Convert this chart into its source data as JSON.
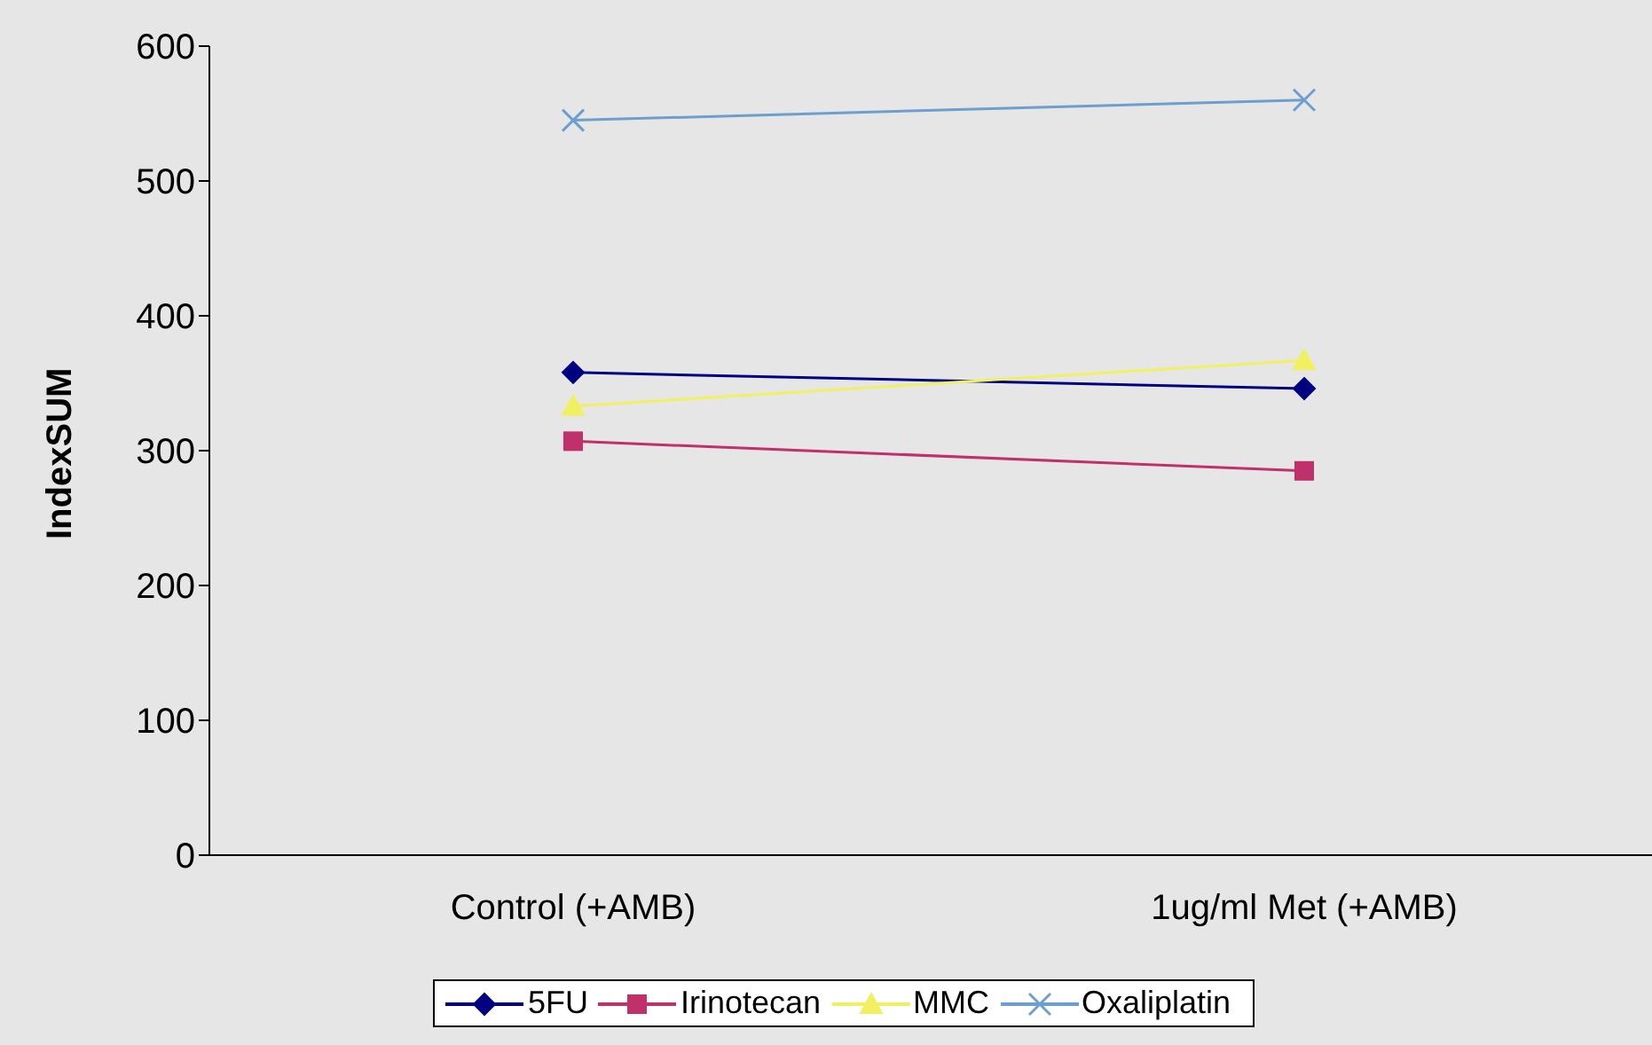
{
  "chart_data": {
    "type": "line",
    "ylabel": "IndexSUM",
    "categories": [
      "Control (+AMB)",
      "1ug/ml Met (+AMB)"
    ],
    "series": [
      {
        "name": "5FU",
        "color": "#000080",
        "marker": "diamond",
        "values": [
          358,
          346
        ]
      },
      {
        "name": "Irinotecan",
        "color": "#c0306a",
        "marker": "square",
        "values": [
          307,
          285
        ]
      },
      {
        "name": "MMC",
        "color": "#f0f060",
        "marker": "triangle",
        "values": [
          333,
          367
        ]
      },
      {
        "name": "Oxaliplatin",
        "color": "#6c9fd0",
        "marker": "cross",
        "values": [
          545,
          560
        ]
      }
    ],
    "ylim": [
      0,
      600
    ],
    "yticks": [
      0,
      100,
      200,
      300,
      400,
      500,
      600
    ],
    "grid": false,
    "legend": "bottom"
  }
}
